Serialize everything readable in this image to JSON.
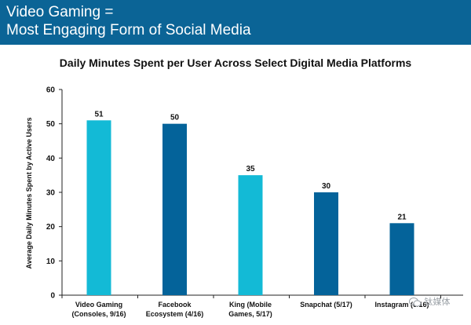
{
  "header": {
    "line1": "Video Gaming =",
    "line2": "Most Engaging Form of Social Media"
  },
  "colors": {
    "header_bg": "#0b6496",
    "accent_light": "#13bad6",
    "accent_dark": "#04639a"
  },
  "chart_data": {
    "type": "bar",
    "title": "Daily Minutes Spent per User Across Select Digital Media Platforms",
    "xlabel": "",
    "ylabel": "Average Daily Minutes Spent by Active Users",
    "ylim": [
      0,
      60
    ],
    "yticks": [
      0,
      10,
      20,
      30,
      40,
      50,
      60
    ],
    "grid": false,
    "categories": [
      [
        "Video Gaming",
        "(Consoles, 9/16)"
      ],
      [
        "Facebook",
        "Ecosystem (4/16)"
      ],
      [
        "King (Mobile",
        "Games, 5/17)"
      ],
      [
        "Snapchat (5/17)"
      ],
      [
        "Instagram (6/16)"
      ]
    ],
    "values": [
      51,
      50,
      35,
      30,
      21
    ],
    "bar_colors": [
      "#13bad6",
      "#04639a",
      "#13bad6",
      "#04639a",
      "#04639a"
    ]
  },
  "watermark": {
    "text": "钛媒体",
    "icon": "wechat-icon"
  }
}
